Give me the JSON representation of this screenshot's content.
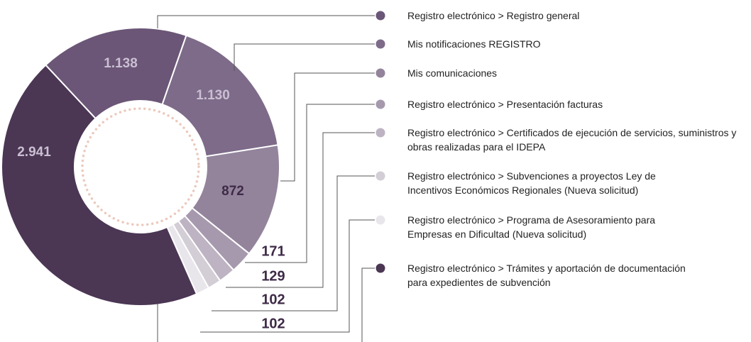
{
  "chart_data": {
    "type": "pie",
    "categories": [
      "Registro electrónico > Registro general",
      "Mis notificaciones REGISTRO",
      "Mis comunicaciones",
      "Registro electrónico > Presentación facturas",
      "Registro electrónico > Certificados de ejecución de servicios, suministros y obras realizadas para el IDEPA",
      "Registro electrónico > Subvenciones a proyectos Ley de Incentivos Económicos Regionales (Nueva solicitud)",
      "Registro electrónico > Programa de Asesoramiento para Empresas en Dificultad (Nueva solicitud)",
      "Registro electrónico > Trámites y aportación de documentación para expedientes de subvención"
    ],
    "values": [
      1138,
      1130,
      872,
      171,
      129,
      102,
      102,
      2941
    ],
    "value_labels": [
      "1.138",
      "1.130",
      "872",
      "171",
      "129",
      "102",
      "102",
      "2.941"
    ],
    "colors": [
      "#6b5677",
      "#7d6b89",
      "#93849c",
      "#a699ae",
      "#bdb3c2",
      "#d3cdd6",
      "#e9e6eb",
      "#4b3654"
    ]
  }
}
